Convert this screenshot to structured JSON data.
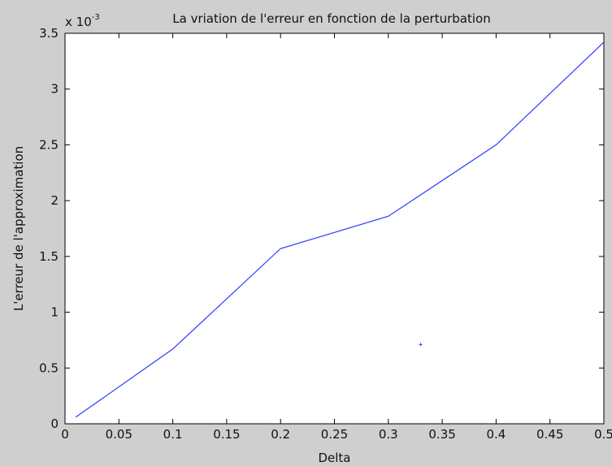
{
  "chart_data": {
    "type": "line",
    "title": "La vriation de l'erreur en fonction de la perturbation",
    "xlabel": "Delta",
    "ylabel": "L'erreur de l'approximation",
    "y_multiplier_label": "x 10",
    "y_multiplier_exponent": "-3",
    "xlim": [
      0,
      0.5
    ],
    "ylim": [
      0,
      3.5
    ],
    "x_ticks": [
      0,
      0.05,
      0.1,
      0.15,
      0.2,
      0.25,
      0.3,
      0.35,
      0.4,
      0.45,
      0.5
    ],
    "x_tick_labels": [
      "0",
      "0.05",
      "0.1",
      "0.15",
      "0.2",
      "0.25",
      "0.3",
      "0.35",
      "0.4",
      "0.45",
      "0.5"
    ],
    "y_ticks": [
      0,
      0.5,
      1,
      1.5,
      2,
      2.5,
      3,
      3.5
    ],
    "y_tick_labels": [
      "0",
      "0.5",
      "1",
      "1.5",
      "2",
      "2.5",
      "3",
      "3.5"
    ],
    "grid": false,
    "line_color": "#2b3bff",
    "series": [
      {
        "x": [
          0.01,
          0.1,
          0.2,
          0.3,
          0.4,
          0.5
        ],
        "y": [
          0.06,
          0.67,
          1.57,
          1.86,
          2.5,
          3.42
        ]
      }
    ],
    "markers": [
      {
        "x": 0.33,
        "y": 0.71
      }
    ]
  }
}
